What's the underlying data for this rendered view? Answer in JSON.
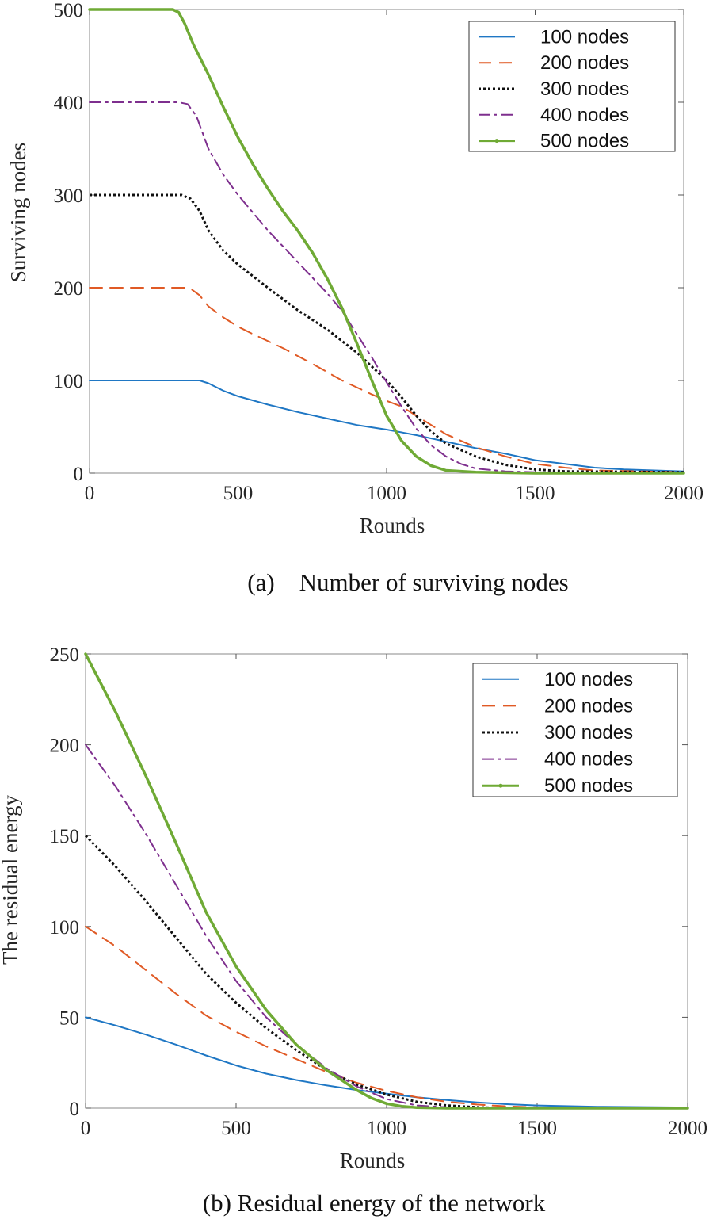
{
  "chart_data": [
    {
      "type": "line",
      "caption": "(a)    Number of surviving nodes",
      "xlabel": "Rounds",
      "ylabel": "Surviving nodes",
      "xlim": [
        0,
        2000
      ],
      "ylim": [
        0,
        500
      ],
      "xticks": [
        0,
        500,
        1000,
        1500,
        2000
      ],
      "yticks": [
        0,
        100,
        200,
        300,
        400,
        500
      ],
      "legend_position": "top-right",
      "series": [
        {
          "name": "100 nodes",
          "color": "#1f77c4",
          "style": "solid",
          "width": 2,
          "x": [
            0,
            330,
            370,
            400,
            450,
            500,
            600,
            700,
            800,
            900,
            1000,
            1100,
            1200,
            1300,
            1400,
            1500,
            1600,
            1700,
            1800,
            1900,
            2000
          ],
          "y": [
            100,
            100,
            100,
            97,
            89,
            83,
            74,
            66,
            59,
            52,
            47,
            41,
            34,
            27,
            21,
            14,
            10,
            6,
            4,
            3,
            2
          ]
        },
        {
          "name": "200 nodes",
          "color": "#e05a25",
          "style": "dashed",
          "width": 2,
          "x": [
            0,
            320,
            340,
            370,
            400,
            450,
            500,
            550,
            650,
            750,
            850,
            950,
            1000,
            1050,
            1100,
            1200,
            1300,
            1400,
            1500,
            1600,
            1700,
            2000
          ],
          "y": [
            200,
            200,
            199,
            192,
            180,
            168,
            158,
            150,
            135,
            118,
            100,
            85,
            78,
            72,
            62,
            42,
            28,
            18,
            10,
            6,
            3,
            1
          ]
        },
        {
          "name": "300 nodes",
          "color": "#111111",
          "style": "dotted",
          "width": 3,
          "x": [
            0,
            310,
            340,
            370,
            400,
            450,
            500,
            600,
            700,
            800,
            900,
            950,
            1000,
            1050,
            1100,
            1150,
            1200,
            1300,
            1400,
            1500,
            1600,
            2000
          ],
          "y": [
            300,
            300,
            296,
            283,
            262,
            240,
            225,
            200,
            176,
            155,
            130,
            115,
            100,
            82,
            62,
            45,
            32,
            18,
            9,
            4,
            2,
            1
          ]
        },
        {
          "name": "400 nodes",
          "color": "#7e2f8e",
          "style": "dashdot",
          "width": 2,
          "x": [
            0,
            300,
            330,
            360,
            400,
            450,
            500,
            600,
            700,
            800,
            850,
            900,
            950,
            1000,
            1050,
            1100,
            1150,
            1200,
            1250,
            1300,
            1400,
            1500,
            2000
          ],
          "y": [
            400,
            400,
            398,
            385,
            350,
            322,
            300,
            262,
            228,
            194,
            175,
            150,
            125,
            98,
            72,
            48,
            30,
            18,
            10,
            5,
            2,
            1,
            0
          ]
        },
        {
          "name": "500 nodes",
          "color": "#6faa35",
          "style": "solid",
          "width": 3.5,
          "x": [
            0,
            280,
            300,
            320,
            350,
            400,
            450,
            500,
            550,
            600,
            650,
            700,
            750,
            800,
            850,
            900,
            950,
            1000,
            1050,
            1100,
            1150,
            1200,
            1300,
            1500,
            2000
          ],
          "y": [
            500,
            500,
            497,
            485,
            462,
            430,
            395,
            362,
            333,
            307,
            283,
            262,
            238,
            210,
            178,
            140,
            100,
            62,
            35,
            18,
            8,
            3,
            1,
            0,
            0
          ]
        }
      ]
    },
    {
      "type": "line",
      "caption": "(b) Residual energy of the network",
      "xlabel": "Rounds",
      "ylabel": "The residual energy",
      "xlim": [
        0,
        2000
      ],
      "ylim": [
        0,
        250
      ],
      "xticks": [
        0,
        500,
        1000,
        1500,
        2000
      ],
      "yticks": [
        0,
        50,
        100,
        150,
        200,
        250
      ],
      "legend_position": "top-right",
      "series": [
        {
          "name": "100 nodes",
          "color": "#1f77c4",
          "style": "solid",
          "width": 2,
          "x": [
            0,
            100,
            200,
            300,
            400,
            500,
            600,
            700,
            800,
            900,
            1000,
            1100,
            1200,
            1300,
            1400,
            1500,
            1700,
            2000
          ],
          "y": [
            50,
            45.5,
            40.5,
            35,
            29,
            23.5,
            19,
            15.5,
            12.5,
            10,
            8,
            6,
            4.5,
            3.2,
            2.2,
            1.5,
            0.8,
            0.4
          ]
        },
        {
          "name": "200 nodes",
          "color": "#e05a25",
          "style": "dashed",
          "width": 2,
          "x": [
            0,
            100,
            200,
            300,
            400,
            500,
            600,
            700,
            800,
            900,
            1000,
            1100,
            1200,
            1300,
            1400,
            1500,
            2000
          ],
          "y": [
            100,
            89,
            76,
            63,
            51,
            42,
            34,
            27,
            20,
            14,
            9.5,
            6,
            3.5,
            2,
            1,
            0.5,
            0
          ]
        },
        {
          "name": "300 nodes",
          "color": "#111111",
          "style": "dotted",
          "width": 3,
          "x": [
            0,
            100,
            200,
            300,
            400,
            500,
            600,
            700,
            800,
            900,
            1000,
            1100,
            1200,
            1300,
            1400,
            2000
          ],
          "y": [
            150,
            133,
            114,
            94,
            74,
            58,
            44,
            32,
            21,
            13,
            7.5,
            3.5,
            1.5,
            0.5,
            0,
            0
          ]
        },
        {
          "name": "400 nodes",
          "color": "#7e2f8e",
          "style": "dashdot",
          "width": 2,
          "x": [
            0,
            100,
            200,
            300,
            400,
            500,
            600,
            700,
            800,
            900,
            1000,
            1100,
            1200,
            1400,
            2000
          ],
          "y": [
            200,
            177,
            151,
            123,
            95,
            70,
            50,
            35,
            22,
            12,
            5,
            1.5,
            0.5,
            0,
            0
          ]
        },
        {
          "name": "500 nodes",
          "color": "#6faa35",
          "style": "solid",
          "width": 3.5,
          "x": [
            0,
            100,
            200,
            300,
            400,
            500,
            600,
            700,
            800,
            900,
            950,
            1000,
            1050,
            1100,
            1200,
            1400,
            2000
          ],
          "y": [
            250,
            218,
            183,
            146,
            108,
            78,
            54,
            35,
            21,
            10,
            5.5,
            2.5,
            1,
            0.3,
            0,
            0,
            0
          ]
        }
      ]
    }
  ]
}
